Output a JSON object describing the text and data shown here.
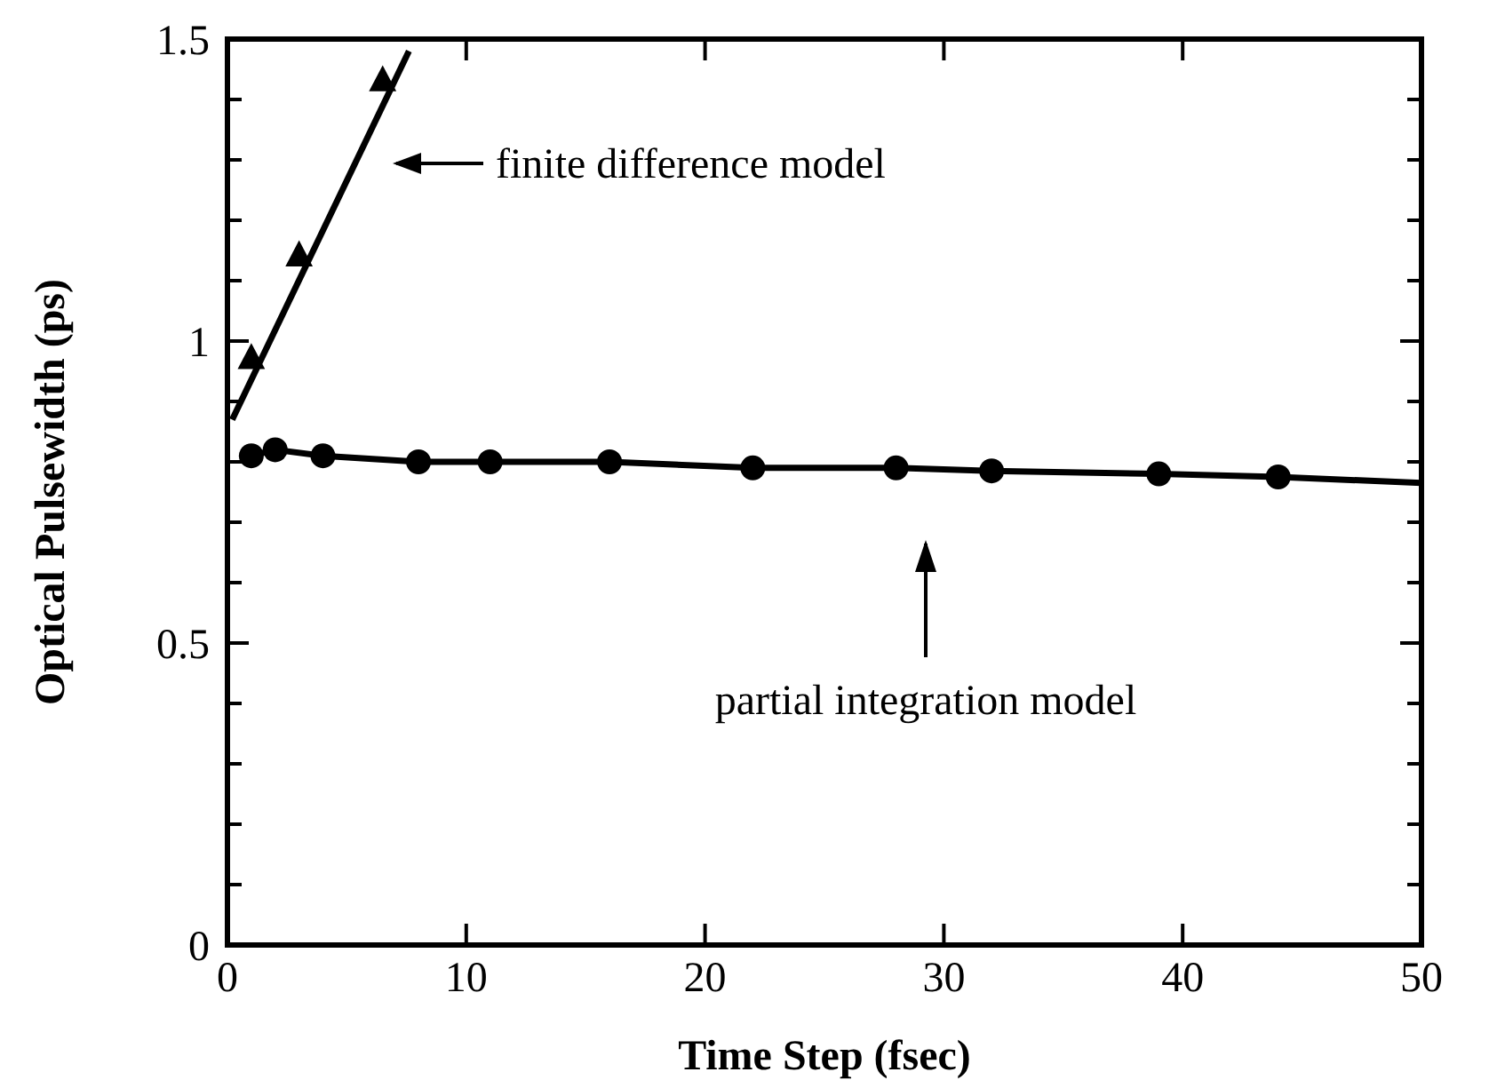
{
  "chart_data": {
    "type": "scatter",
    "xlabel": "Time Step (fsec)",
    "ylabel": "Optical Pulsewidth (ps)",
    "xlim": [
      0,
      50
    ],
    "xticks": [
      0,
      10,
      20,
      30,
      40,
      50
    ],
    "ylim": [
      0,
      1.5
    ],
    "yticks": [
      0,
      {
        "value": 0.1,
        "label": null
      },
      {
        "value": 0.2,
        "label": null
      },
      {
        "value": 0.3,
        "label": null
      },
      {
        "value": 0.4,
        "label": null
      },
      0.5,
      {
        "value": 0.6,
        "label": null
      },
      {
        "value": 0.7,
        "label": null
      },
      {
        "value": 0.8,
        "label": null
      },
      {
        "value": 0.9,
        "label": null
      },
      1,
      {
        "value": 1.1,
        "label": null
      },
      {
        "value": 1.2,
        "label": null
      },
      {
        "value": 1.3,
        "label": null
      },
      {
        "value": 1.4,
        "label": null
      },
      1.5
    ],
    "grid": false,
    "series": [
      {
        "marker": "triangle",
        "color": "#000000",
        "x": [
          1,
          3,
          6.5
        ],
        "values": [
          0.97,
          1.14,
          1.43
        ]
      },
      {
        "type": "line",
        "marker": "none",
        "color": "#000000",
        "x": [
          0.2,
          7.6
        ],
        "values": [
          0.87,
          1.48
        ]
      },
      {
        "marker": "circle",
        "color": "#000000",
        "x": [
          1,
          2,
          4,
          8,
          11,
          16,
          22,
          28,
          32,
          39,
          44
        ],
        "values": [
          0.81,
          0.82,
          0.81,
          0.8,
          0.8,
          0.8,
          0.79,
          0.79,
          0.785,
          0.78,
          0.775
        ]
      },
      {
        "type": "line",
        "marker": "none",
        "color": "#000000",
        "x": [
          1,
          2,
          4,
          8,
          11,
          16,
          22,
          28,
          32,
          39,
          44,
          50
        ],
        "values": [
          0.81,
          0.82,
          0.81,
          0.8,
          0.8,
          0.8,
          0.79,
          0.79,
          0.785,
          0.78,
          0.775,
          0.765
        ]
      }
    ],
    "annotations": [
      "finite difference model",
      "partial integration model"
    ]
  }
}
